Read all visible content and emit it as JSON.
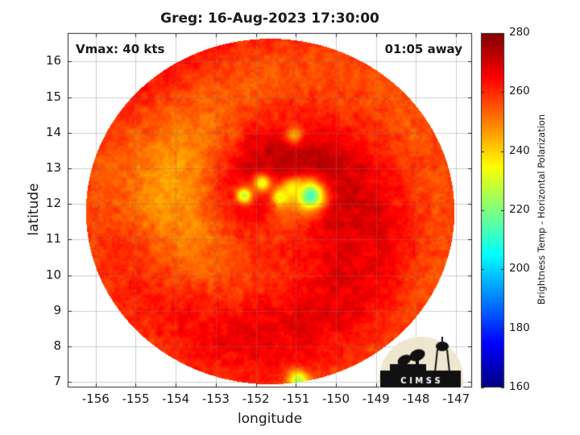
{
  "title": "Greg: 16-Aug-2023 17:30:00",
  "annotations": {
    "vmax": "Vmax: 40 kts",
    "time_away": "01:05 away"
  },
  "logo": {
    "text": "CIMSS"
  },
  "colors": {
    "scale": [
      "#7f0000",
      "#ff0000",
      "#ff8000",
      "#ffff00",
      "#80ff80",
      "#00ffff",
      "#0080ff",
      "#0000ff",
      "#00008f"
    ]
  },
  "chart_data": {
    "type": "heatmap",
    "xlabel": "longitude",
    "ylabel": "latitude",
    "xlim": [
      -156.7,
      -146.6
    ],
    "ylim": [
      6.85,
      16.8
    ],
    "xticks": [
      -156,
      -155,
      -154,
      -153,
      -152,
      -151,
      -150,
      -149,
      -148,
      -147
    ],
    "yticks": [
      7,
      8,
      9,
      10,
      11,
      12,
      13,
      14,
      15,
      16
    ],
    "grid": true,
    "colorbar": {
      "label": "Brightness Temp - Horizontal Polarization",
      "range": [
        160,
        280
      ],
      "ticks": [
        160,
        180,
        200,
        220,
        240,
        260,
        280
      ]
    },
    "swath_center": [
      -151.65,
      11.8
    ],
    "storm_center": [
      -151.5,
      12.0
    ],
    "features": [
      {
        "lon": -150.65,
        "lat": 12.25,
        "tb": 212
      },
      {
        "lon": -151.1,
        "lat": 12.45,
        "tb": 235
      },
      {
        "lon": -151.4,
        "lat": 12.2,
        "tb": 232
      },
      {
        "lon": -151.85,
        "lat": 12.6,
        "tb": 232
      },
      {
        "lon": -152.3,
        "lat": 12.25,
        "tb": 226
      },
      {
        "lon": -151.05,
        "lat": 13.95,
        "tb": 245
      },
      {
        "lon": -150.95,
        "lat": 7.05,
        "tb": 225
      }
    ]
  }
}
